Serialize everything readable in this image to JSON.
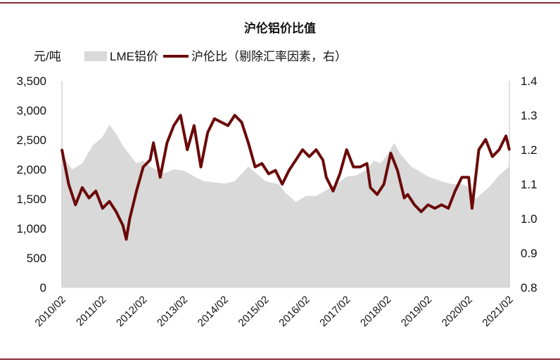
{
  "chart_data": {
    "type": "area+line",
    "title": "沪伦铝价比值",
    "y_left_unit": "元/吨",
    "y_left_range": [
      0,
      3500
    ],
    "y_left_ticks": [
      "0",
      "500",
      "1,000",
      "1,500",
      "2,000",
      "2,500",
      "3,000",
      "3,500"
    ],
    "y_right_range": [
      0.8,
      1.4
    ],
    "y_right_ticks": [
      "0.8",
      "0.9",
      "1.0",
      "1.1",
      "1.2",
      "1.3",
      "1.4"
    ],
    "x_ticks": [
      "2010/02",
      "2011/02",
      "2012/02",
      "2013/02",
      "2014/02",
      "2015/02",
      "2016/02",
      "2017/02",
      "2018/02",
      "2019/02",
      "2020/02",
      "2021/02"
    ],
    "legend_position": "top",
    "grid": false,
    "colors": {
      "area": "#d9d9d9",
      "line": "#6b0a0a",
      "rule": "#8a2a35"
    },
    "series": [
      {
        "name": "LME铝价",
        "type": "area",
        "axis": "left",
        "x": [
          "2010/02",
          "2010/05",
          "2010/08",
          "2010/11",
          "2011/02",
          "2011/04",
          "2011/06",
          "2011/08",
          "2011/10",
          "2011/12",
          "2012/02",
          "2012/04",
          "2012/08",
          "2012/11",
          "2013/02",
          "2013/06",
          "2013/08",
          "2013/11",
          "2014/02",
          "2014/05",
          "2014/09",
          "2014/12",
          "2015/02",
          "2015/06",
          "2015/08",
          "2015/11",
          "2016/02",
          "2016/05",
          "2016/08",
          "2016/11",
          "2017/02",
          "2017/05",
          "2017/08",
          "2017/10",
          "2017/12",
          "2018/02",
          "2018/04",
          "2018/06",
          "2018/09",
          "2018/12",
          "2019/02",
          "2019/06",
          "2019/09",
          "2019/12",
          "2020/02",
          "2020/04",
          "2020/08",
          "2020/11",
          "2021/02"
        ],
        "values": [
          2250,
          2000,
          2100,
          2400,
          2550,
          2760,
          2600,
          2400,
          2250,
          2100,
          2150,
          2050,
          1930,
          2000,
          1980,
          1850,
          1800,
          1780,
          1760,
          1800,
          2050,
          1900,
          1800,
          1750,
          1600,
          1450,
          1550,
          1550,
          1650,
          1750,
          1880,
          1900,
          2000,
          2150,
          2100,
          2250,
          2450,
          2250,
          2050,
          1950,
          1880,
          1800,
          1750,
          1750,
          1700,
          1500,
          1700,
          1900,
          2050
        ]
      },
      {
        "name": "沪伦比（剔除汇率因素，右）",
        "type": "line",
        "axis": "right",
        "x": [
          "2010/02",
          "2010/04",
          "2010/06",
          "2010/08",
          "2010/10",
          "2010/12",
          "2011/02",
          "2011/04",
          "2011/06",
          "2011/08",
          "2011/09",
          "2011/10",
          "2011/12",
          "2012/02",
          "2012/04",
          "2012/05",
          "2012/07",
          "2012/09",
          "2012/11",
          "2013/01",
          "2013/03",
          "2013/05",
          "2013/07",
          "2013/09",
          "2013/11",
          "2014/01",
          "2014/03",
          "2014/05",
          "2014/07",
          "2014/09",
          "2014/11",
          "2015/01",
          "2015/03",
          "2015/05",
          "2015/07",
          "2015/09",
          "2015/11",
          "2016/01",
          "2016/03",
          "2016/05",
          "2016/07",
          "2016/08",
          "2016/10",
          "2016/12",
          "2017/02",
          "2017/04",
          "2017/06",
          "2017/08",
          "2017/09",
          "2017/11",
          "2018/01",
          "2018/03",
          "2018/05",
          "2018/07",
          "2018/08",
          "2018/10",
          "2018/12",
          "2019/02",
          "2019/04",
          "2019/06",
          "2019/08",
          "2019/10",
          "2019/12",
          "2020/02",
          "2020/03",
          "2020/05",
          "2020/07",
          "2020/09",
          "2020/11",
          "2021/01",
          "2021/02"
        ],
        "values": [
          1.2,
          1.1,
          1.04,
          1.09,
          1.06,
          1.08,
          1.03,
          1.05,
          1.02,
          0.98,
          0.94,
          1.0,
          1.08,
          1.15,
          1.17,
          1.22,
          1.12,
          1.22,
          1.27,
          1.3,
          1.2,
          1.27,
          1.15,
          1.25,
          1.29,
          1.28,
          1.27,
          1.3,
          1.28,
          1.22,
          1.15,
          1.16,
          1.13,
          1.14,
          1.1,
          1.14,
          1.17,
          1.2,
          1.18,
          1.2,
          1.17,
          1.12,
          1.08,
          1.13,
          1.2,
          1.15,
          1.15,
          1.16,
          1.09,
          1.07,
          1.1,
          1.19,
          1.14,
          1.06,
          1.07,
          1.04,
          1.02,
          1.04,
          1.03,
          1.04,
          1.03,
          1.08,
          1.12,
          1.12,
          1.03,
          1.2,
          1.23,
          1.18,
          1.2,
          1.24,
          1.2
        ]
      }
    ]
  }
}
